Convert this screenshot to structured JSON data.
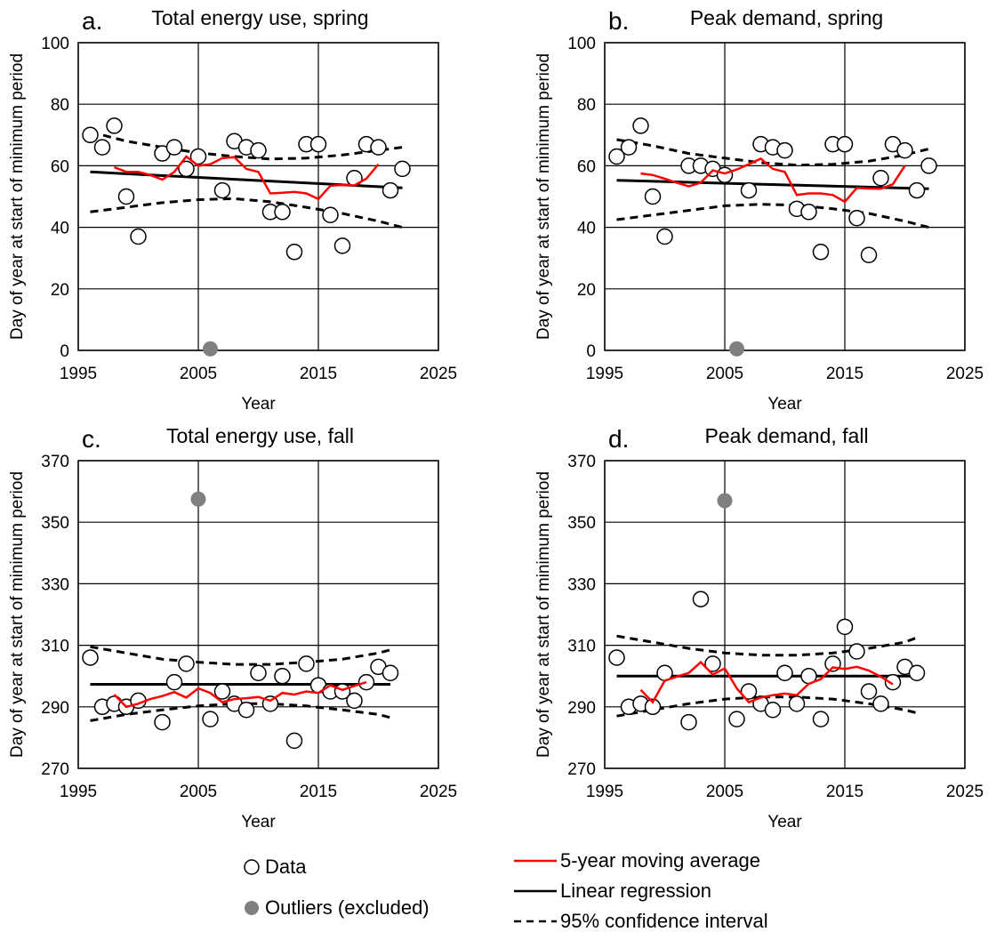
{
  "legend": {
    "data": "Data",
    "outliers": "Outliers (excluded)",
    "moving_average": "5-year moving average",
    "regression": "Linear regression",
    "confidence": "95% confidence interval",
    "colors": {
      "moving_average": "#ff0000",
      "regression": "#000000",
      "outlier_fill": "#808080"
    }
  },
  "chart_data": [
    {
      "type": "scatter",
      "letter": "a.",
      "title": "Total energy use, spring",
      "xlabel": "Year",
      "ylabel": "Day of year at start of minimum period",
      "xlim": [
        1995,
        2025
      ],
      "ylim": [
        0,
        100
      ],
      "xticks": [
        1995,
        2005,
        2015,
        2025
      ],
      "yticks": [
        0,
        20,
        40,
        60,
        80,
        100
      ],
      "grid": true,
      "data_points": [
        [
          1996,
          70
        ],
        [
          1997,
          66
        ],
        [
          1998,
          73
        ],
        [
          1999,
          50
        ],
        [
          2000,
          37
        ],
        [
          2002,
          64
        ],
        [
          2003,
          66
        ],
        [
          2004,
          59
        ],
        [
          2005,
          63
        ],
        [
          2007,
          52
        ],
        [
          2008,
          68
        ],
        [
          2009,
          66
        ],
        [
          2010,
          65
        ],
        [
          2011,
          45
        ],
        [
          2012,
          45
        ],
        [
          2013,
          32
        ],
        [
          2014,
          67
        ],
        [
          2015,
          67
        ],
        [
          2016,
          44
        ],
        [
          2017,
          34
        ],
        [
          2018,
          56
        ],
        [
          2019,
          67
        ],
        [
          2020,
          66
        ],
        [
          2021,
          52
        ],
        [
          2022,
          59
        ]
      ],
      "outliers": [
        [
          2006,
          0.5
        ]
      ],
      "moving_average": [
        [
          1998,
          59.5
        ],
        [
          1999,
          58
        ],
        [
          2000,
          58
        ],
        [
          2001,
          57
        ],
        [
          2002,
          55.5
        ],
        [
          2003,
          58
        ],
        [
          2004,
          63
        ],
        [
          2005,
          60
        ],
        [
          2006,
          60.5
        ],
        [
          2007,
          62.5
        ],
        [
          2008,
          62.8
        ],
        [
          2009,
          59
        ],
        [
          2010,
          58
        ],
        [
          2011,
          51
        ],
        [
          2012,
          51.2
        ],
        [
          2013,
          51.5
        ],
        [
          2014,
          51
        ],
        [
          2015,
          49.2
        ],
        [
          2016,
          53.5
        ],
        [
          2017,
          53.8
        ],
        [
          2018,
          53.6
        ],
        [
          2019,
          55.8
        ],
        [
          2020,
          60.5
        ]
      ],
      "regression": [
        [
          1996,
          58
        ],
        [
          2022,
          52.8
        ]
      ],
      "ci_upper": [
        [
          1996,
          71
        ],
        [
          1999,
          68
        ],
        [
          2002,
          66
        ],
        [
          2005,
          64.2
        ],
        [
          2008,
          63
        ],
        [
          2011,
          62.2
        ],
        [
          2014,
          62.5
        ],
        [
          2017,
          63.5
        ],
        [
          2020,
          65
        ],
        [
          2022,
          66
        ]
      ],
      "ci_lower": [
        [
          1996,
          45
        ],
        [
          1999,
          46.5
        ],
        [
          2002,
          48
        ],
        [
          2005,
          49
        ],
        [
          2008,
          49.3
        ],
        [
          2011,
          48.3
        ],
        [
          2014,
          46.5
        ],
        [
          2017,
          44.5
        ],
        [
          2020,
          42
        ],
        [
          2022,
          40
        ]
      ]
    },
    {
      "type": "scatter",
      "letter": "b.",
      "title": "Peak demand, spring",
      "xlabel": "Year",
      "ylabel": "Day of year at start of minimum period",
      "xlim": [
        1995,
        2025
      ],
      "ylim": [
        0,
        100
      ],
      "xticks": [
        1995,
        2005,
        2015,
        2025
      ],
      "yticks": [
        0,
        20,
        40,
        60,
        80,
        100
      ],
      "grid": true,
      "data_points": [
        [
          1996,
          63
        ],
        [
          1997,
          66
        ],
        [
          1998,
          73
        ],
        [
          1999,
          50
        ],
        [
          2000,
          37
        ],
        [
          2002,
          60
        ],
        [
          2003,
          60
        ],
        [
          2004,
          59
        ],
        [
          2005,
          57
        ],
        [
          2007,
          52
        ],
        [
          2008,
          67
        ],
        [
          2009,
          66
        ],
        [
          2010,
          65
        ],
        [
          2011,
          46
        ],
        [
          2012,
          45
        ],
        [
          2013,
          32
        ],
        [
          2014,
          67
        ],
        [
          2015,
          67
        ],
        [
          2016,
          43
        ],
        [
          2017,
          31
        ],
        [
          2018,
          56
        ],
        [
          2019,
          67
        ],
        [
          2020,
          65
        ],
        [
          2021,
          52
        ],
        [
          2022,
          60
        ]
      ],
      "outliers": [
        [
          2006,
          0.5
        ]
      ],
      "moving_average": [
        [
          1998,
          57.5
        ],
        [
          1999,
          57
        ],
        [
          2000,
          55.8
        ],
        [
          2001,
          54.5
        ],
        [
          2002,
          53.3
        ],
        [
          2003,
          54.5
        ],
        [
          2004,
          58.5
        ],
        [
          2005,
          57.5
        ],
        [
          2006,
          58.8
        ],
        [
          2007,
          60.5
        ],
        [
          2008,
          62.3
        ],
        [
          2009,
          59
        ],
        [
          2010,
          58
        ],
        [
          2011,
          50.5
        ],
        [
          2012,
          51
        ],
        [
          2013,
          51
        ],
        [
          2014,
          50.5
        ],
        [
          2015,
          48.3
        ],
        [
          2016,
          52.8
        ],
        [
          2017,
          52.6
        ],
        [
          2018,
          52.5
        ],
        [
          2019,
          54
        ],
        [
          2020,
          60
        ]
      ],
      "regression": [
        [
          1996,
          55.3
        ],
        [
          2022,
          52.5
        ]
      ],
      "ci_upper": [
        [
          1996,
          68.5
        ],
        [
          1999,
          66.5
        ],
        [
          2002,
          64
        ],
        [
          2005,
          62.5
        ],
        [
          2008,
          61
        ],
        [
          2011,
          60.2
        ],
        [
          2014,
          60.5
        ],
        [
          2017,
          61.5
        ],
        [
          2020,
          63.5
        ],
        [
          2022,
          65.5
        ]
      ],
      "ci_lower": [
        [
          1996,
          42.5
        ],
        [
          1999,
          44
        ],
        [
          2002,
          45.5
        ],
        [
          2005,
          47
        ],
        [
          2008,
          47.5
        ],
        [
          2011,
          47.2
        ],
        [
          2014,
          46
        ],
        [
          2017,
          44.5
        ],
        [
          2020,
          42
        ],
        [
          2022,
          40
        ]
      ]
    },
    {
      "type": "scatter",
      "letter": "c.",
      "title": "Total energy use, fall",
      "xlabel": "Year",
      "ylabel": "Day of year at start of minimum period",
      "xlim": [
        1995,
        2025
      ],
      "ylim": [
        270,
        370
      ],
      "xticks": [
        1995,
        2005,
        2015,
        2025
      ],
      "yticks": [
        270,
        290,
        310,
        330,
        350,
        370
      ],
      "grid": true,
      "data_points": [
        [
          1996,
          306
        ],
        [
          1997,
          290
        ],
        [
          1998,
          291
        ],
        [
          1999,
          290
        ],
        [
          2000,
          292
        ],
        [
          2002,
          285
        ],
        [
          2003,
          298
        ],
        [
          2004,
          304
        ],
        [
          2006,
          286
        ],
        [
          2007,
          295
        ],
        [
          2008,
          291
        ],
        [
          2009,
          289
        ],
        [
          2010,
          301
        ],
        [
          2011,
          291
        ],
        [
          2012,
          300
        ],
        [
          2013,
          279
        ],
        [
          2014,
          304
        ],
        [
          2015,
          297
        ],
        [
          2016,
          295
        ],
        [
          2017,
          295
        ],
        [
          2018,
          292
        ],
        [
          2019,
          298
        ],
        [
          2020,
          303
        ],
        [
          2021,
          301
        ]
      ],
      "outliers": [
        [
          2005,
          357.5
        ]
      ],
      "moving_average": [
        [
          1998,
          294
        ],
        [
          1999,
          290
        ],
        [
          2000,
          291
        ],
        [
          2001,
          292.5
        ],
        [
          2002,
          293.5
        ],
        [
          2003,
          294.8
        ],
        [
          2004,
          293
        ],
        [
          2005,
          296
        ],
        [
          2006,
          294.5
        ],
        [
          2007,
          291.5
        ],
        [
          2008,
          292.5
        ],
        [
          2009,
          292.8
        ],
        [
          2010,
          293.2
        ],
        [
          2011,
          292
        ],
        [
          2012,
          294.5
        ],
        [
          2013,
          294
        ],
        [
          2014,
          295
        ],
        [
          2015,
          294.5
        ],
        [
          2016,
          297
        ],
        [
          2017,
          295.5
        ],
        [
          2018,
          296.8
        ],
        [
          2019,
          298
        ]
      ],
      "regression": [
        [
          1996,
          297.3
        ],
        [
          2021,
          297.3
        ]
      ],
      "ci_upper": [
        [
          1996,
          309.5
        ],
        [
          1999,
          307.5
        ],
        [
          2002,
          305.5
        ],
        [
          2005,
          304.5
        ],
        [
          2008,
          303.8
        ],
        [
          2011,
          303.8
        ],
        [
          2014,
          304.5
        ],
        [
          2017,
          305.5
        ],
        [
          2020,
          307.5
        ],
        [
          2021,
          308.5
        ]
      ],
      "ci_lower": [
        [
          1996,
          285.5
        ],
        [
          1999,
          287.5
        ],
        [
          2002,
          289
        ],
        [
          2005,
          290.3
        ],
        [
          2008,
          291
        ],
        [
          2011,
          291
        ],
        [
          2014,
          290.3
        ],
        [
          2017,
          289
        ],
        [
          2020,
          287.5
        ],
        [
          2021,
          286.5
        ]
      ]
    },
    {
      "type": "scatter",
      "letter": "d.",
      "title": "Peak demand, fall",
      "xlabel": "Year",
      "ylabel": "Day of year at start of minimum period",
      "xlim": [
        1995,
        2025
      ],
      "ylim": [
        270,
        370
      ],
      "xticks": [
        1995,
        2005,
        2015,
        2025
      ],
      "yticks": [
        270,
        290,
        310,
        330,
        350,
        370
      ],
      "grid": true,
      "data_points": [
        [
          1996,
          306
        ],
        [
          1997,
          290
        ],
        [
          1998,
          291
        ],
        [
          1999,
          290
        ],
        [
          2000,
          301
        ],
        [
          2002,
          285
        ],
        [
          2003,
          325
        ],
        [
          2004,
          304
        ],
        [
          2006,
          286
        ],
        [
          2007,
          295
        ],
        [
          2008,
          291
        ],
        [
          2009,
          289
        ],
        [
          2010,
          301
        ],
        [
          2011,
          291
        ],
        [
          2012,
          300
        ],
        [
          2013,
          286
        ],
        [
          2014,
          304
        ],
        [
          2015,
          316
        ],
        [
          2016,
          308
        ],
        [
          2017,
          295
        ],
        [
          2018,
          291
        ],
        [
          2019,
          298
        ],
        [
          2020,
          303
        ],
        [
          2021,
          301
        ]
      ],
      "outliers": [
        [
          2005,
          357
        ]
      ],
      "moving_average": [
        [
          1998,
          295.5
        ],
        [
          1999,
          291.5
        ],
        [
          2000,
          298.5
        ],
        [
          2001,
          299.8
        ],
        [
          2002,
          301
        ],
        [
          2003,
          304.5
        ],
        [
          2004,
          300.5
        ],
        [
          2005,
          302.5
        ],
        [
          2006,
          296
        ],
        [
          2007,
          291.5
        ],
        [
          2008,
          293
        ],
        [
          2009,
          293.8
        ],
        [
          2010,
          294.3
        ],
        [
          2011,
          293.8
        ],
        [
          2012,
          297.5
        ],
        [
          2013,
          299
        ],
        [
          2014,
          302.8
        ],
        [
          2015,
          302.3
        ],
        [
          2016,
          303
        ],
        [
          2017,
          301.8
        ],
        [
          2018,
          299.8
        ],
        [
          2019,
          297.3
        ]
      ],
      "regression": [
        [
          1996,
          300
        ],
        [
          2021,
          300
        ]
      ],
      "ci_upper": [
        [
          1996,
          313
        ],
        [
          1999,
          311
        ],
        [
          2002,
          309
        ],
        [
          2005,
          307.5
        ],
        [
          2008,
          306.8
        ],
        [
          2011,
          306.8
        ],
        [
          2014,
          307.5
        ],
        [
          2017,
          309
        ],
        [
          2020,
          311
        ],
        [
          2021,
          312.5
        ]
      ],
      "ci_lower": [
        [
          1996,
          287
        ],
        [
          1999,
          289
        ],
        [
          2002,
          291
        ],
        [
          2005,
          292.5
        ],
        [
          2008,
          293.2
        ],
        [
          2011,
          293.2
        ],
        [
          2014,
          292.5
        ],
        [
          2017,
          291
        ],
        [
          2020,
          289
        ],
        [
          2021,
          288
        ]
      ]
    }
  ]
}
